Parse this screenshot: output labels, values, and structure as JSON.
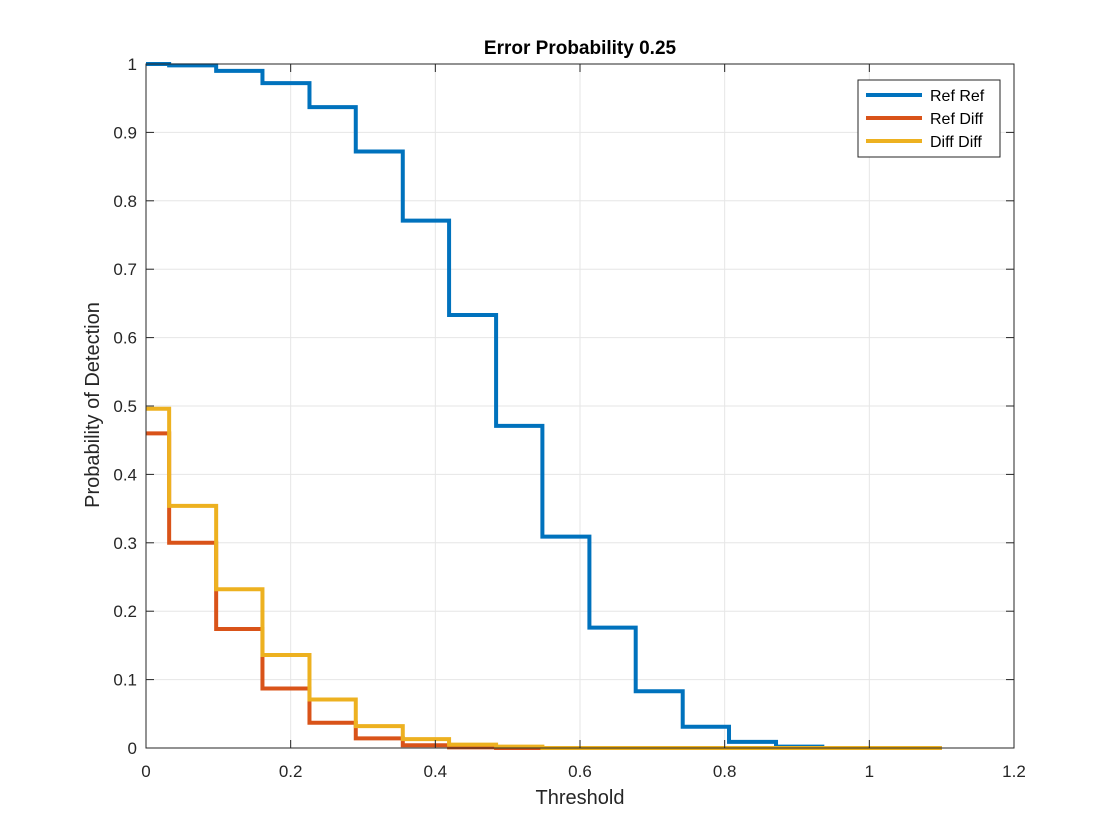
{
  "chart_data": {
    "type": "line",
    "title": "Error Probability 0.25",
    "xlabel": "Threshold",
    "ylabel": "Probability of Detection",
    "xlim": [
      0,
      1.2
    ],
    "ylim": [
      0,
      1
    ],
    "xticks": [
      "0",
      "0.2",
      "0.4",
      "0.6",
      "0.8",
      "1",
      "1.2"
    ],
    "yticks": [
      "0",
      "0.1",
      "0.2",
      "0.3",
      "0.4",
      "0.5",
      "0.6",
      "0.7",
      "0.8",
      "0.9",
      "1"
    ],
    "grid": true,
    "legend_position": "top-right",
    "step": true,
    "series": [
      {
        "name": "Ref Ref",
        "color": "#0072BD",
        "x": [
          0,
          0.032,
          0.097,
          0.161,
          0.226,
          0.29,
          0.355,
          0.419,
          0.484,
          0.548,
          0.613,
          0.677,
          0.742,
          0.806,
          0.871,
          0.935,
          1.0,
          1.065,
          1.1
        ],
        "y": [
          1.0,
          0.998,
          0.99,
          0.972,
          0.937,
          0.872,
          0.771,
          0.633,
          0.471,
          0.309,
          0.176,
          0.083,
          0.031,
          0.009,
          0.002,
          0.0,
          0.0,
          0.0,
          0.0
        ]
      },
      {
        "name": "Ref Diff",
        "color": "#D95319",
        "x": [
          0,
          0.032,
          0.097,
          0.161,
          0.226,
          0.29,
          0.355,
          0.419,
          0.484,
          0.548,
          0.613,
          0.677,
          0.742,
          0.806,
          0.871,
          0.935,
          1.0,
          1.065,
          1.1
        ],
        "y": [
          0.46,
          0.3,
          0.174,
          0.087,
          0.037,
          0.014,
          0.004,
          0.001,
          0.0,
          0.0,
          0.0,
          0.0,
          0.0,
          0.0,
          0.0,
          0.0,
          0.0,
          0.0,
          0.0
        ]
      },
      {
        "name": "Diff Diff",
        "color": "#EDB120",
        "x": [
          0,
          0.032,
          0.097,
          0.161,
          0.226,
          0.29,
          0.355,
          0.419,
          0.484,
          0.548,
          0.613,
          0.677,
          0.742,
          0.806,
          0.871,
          0.935,
          1.0,
          1.065,
          1.1
        ],
        "y": [
          0.496,
          0.354,
          0.232,
          0.136,
          0.071,
          0.032,
          0.013,
          0.005,
          0.002,
          0.0,
          0.0,
          0.0,
          0.0,
          0.0,
          0.0,
          0.0,
          0.0,
          0.0,
          0.0
        ]
      }
    ]
  }
}
